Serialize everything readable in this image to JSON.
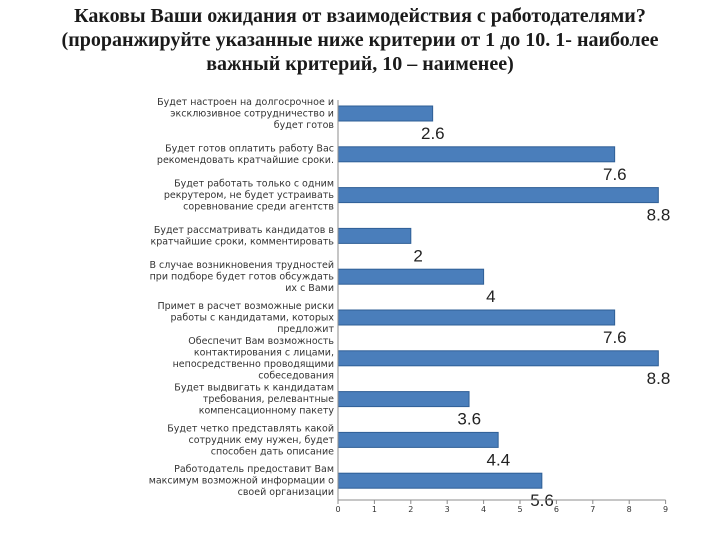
{
  "chart_data": {
    "type": "bar",
    "orientation": "horizontal",
    "title": "Каковы Ваши ожидания от взаимодействия с работодателями? (проранжируйте указанные ниже критерии от 1 до 10. 1- наиболее важный критерий, 10 – наименее)",
    "categories": [
      "Будет настроен на долгосрочное и эксклюзивное сотрудничество и будет готов",
      "Будет готов оплатить работу Вас рекомендовать кратчайшие сроки.",
      "Будет работать только с одним рекрутером, не будет устраивать соревнование среди агентств",
      "Будет рассматривать кандидатов в кратчайшие сроки, комментировать",
      "В случае возникновения трудностей при подборе будет готов обсуждать их с Вами",
      "Примет в расчет возможные риски работы с кандидатами, которых предложит",
      "Обеспечит Вам возможность контактирования с лицами, непосредственно проводящими собеседования",
      "Будет выдвигать к кандидатам требования, релевантные компенсационному пакету",
      "Будет четко представлять какой сотрудник ему нужен, будет способен дать описание",
      "Работодатель предоставит Вам максимум возможной информации о своей организации"
    ],
    "values": [
      2.6,
      7.6,
      8.8,
      2,
      4,
      7.6,
      8.8,
      3.6,
      4.4,
      5.6
    ],
    "value_labels": [
      "2.6",
      "7.6",
      "8.8",
      "2",
      "4",
      "7.6",
      "8.8",
      "3.6",
      "4.4",
      "5.6"
    ],
    "xlim": [
      0,
      9
    ],
    "x_ticks": [
      "0",
      "1",
      "2",
      "3",
      "4",
      "5",
      "6",
      "7",
      "8",
      "9"
    ],
    "grid": false,
    "colors": {
      "bar_fill": "#4a7ebb",
      "bar_stroke": "#2f5f96",
      "axis": "#8c8c8c"
    }
  }
}
